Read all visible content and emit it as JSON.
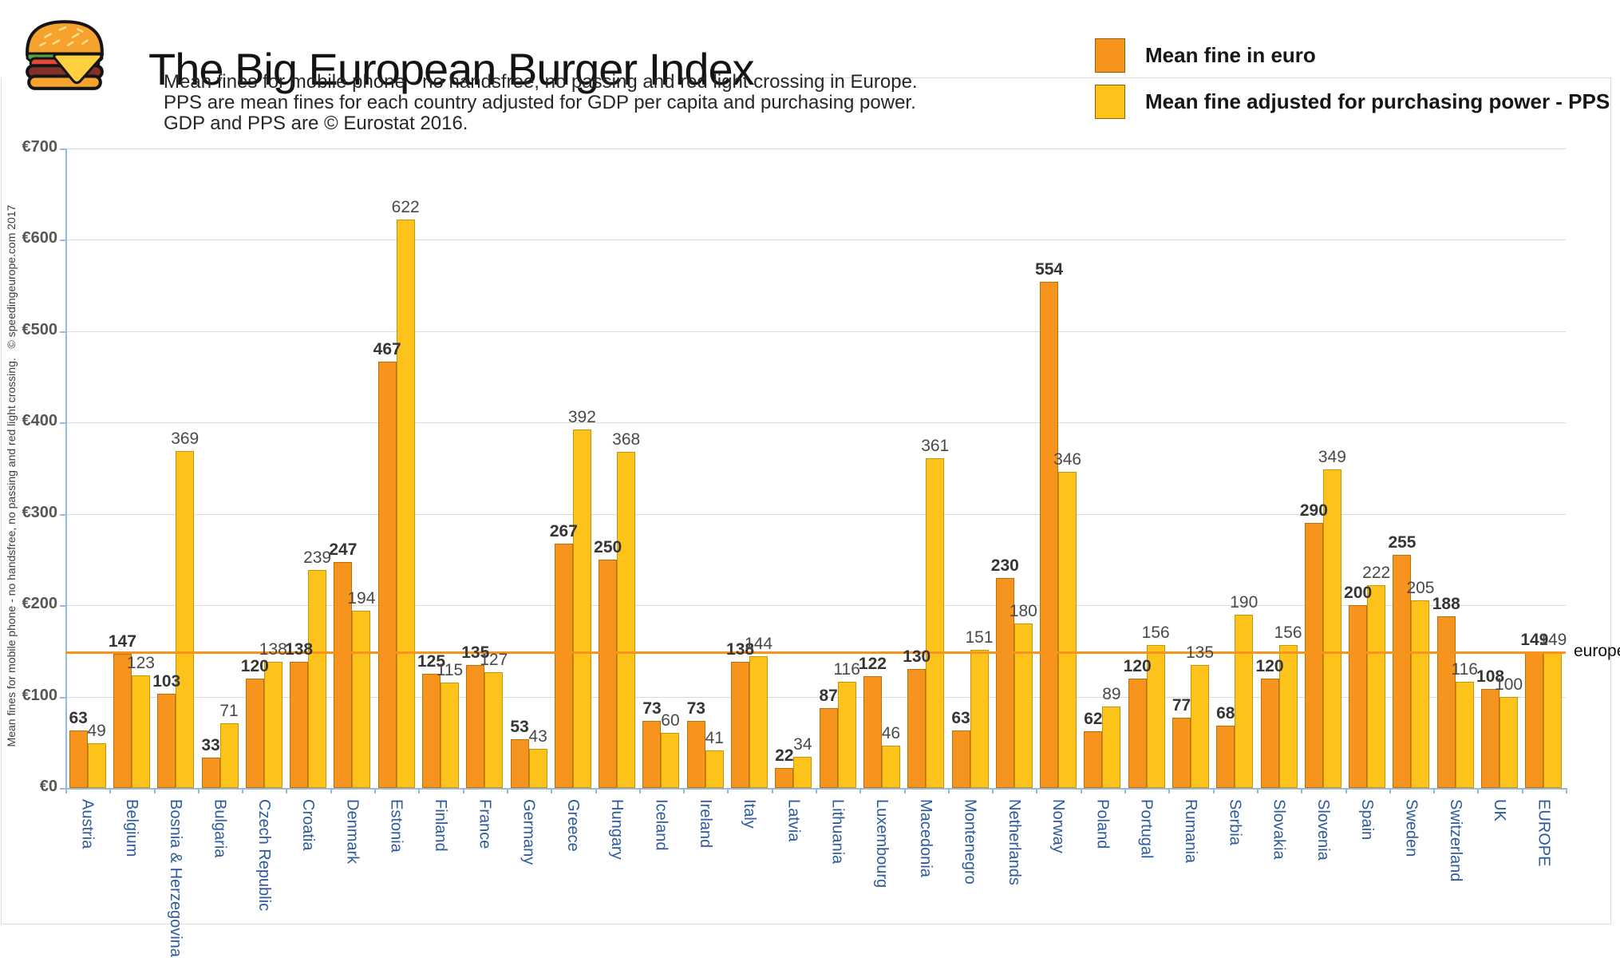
{
  "header": {
    "title": "The Big European Burger Index",
    "subtitle_lines": [
      "Mean fines for mobile phone - no handsfree, no passing and red light crossing in Europe.",
      "PPS are mean fines for each country adjusted for GDP per capita and purchasing power.",
      "GDP and PPS are © Eurostat 2016."
    ]
  },
  "legend": [
    {
      "label": "Mean fine in euro",
      "color": "#F7941E"
    },
    {
      "label": "Mean fine adjusted for purchasing power - PPS",
      "color": "#FDC31A"
    }
  ],
  "side_caption": "Mean fines for mobile phone - no handsfree, no passing and red light crossing.   © speedingeurope.com 2017",
  "chart_data": {
    "type": "bar",
    "title": "The Big European Burger Index",
    "xlabel": "",
    "ylabel": "",
    "ylim": [
      0,
      700
    ],
    "y_tick_step": 100,
    "y_tick_labels": [
      "€0",
      "€100",
      "€200",
      "€300",
      "€400",
      "€500",
      "€600",
      "€700"
    ],
    "grid": true,
    "legend_position": "top-right",
    "categories": [
      "Austria",
      "Belgium",
      "Bosnia & Herzegovina",
      "Bulgaria",
      "Czech Republic",
      "Croatia",
      "Denmark",
      "Estonia",
      "Finland",
      "France",
      "Germany",
      "Greece",
      "Hungary",
      "Iceland",
      "Ireland",
      "Italy",
      "Latvia",
      "Lithuania",
      "Luxembourg",
      "Macedonia",
      "Montenegro",
      "Netherlands",
      "Norway",
      "Poland",
      "Portugal",
      "Rumania",
      "Serbia",
      "Slovakia",
      "Slovenia",
      "Spain",
      "Sweden",
      "Switzerland",
      "UK",
      "EUROPE"
    ],
    "series": [
      {
        "name": "Mean fine in euro",
        "color": "#F7941E",
        "values": [
          63,
          147,
          103,
          33,
          120,
          138,
          247,
          467,
          125,
          135,
          53,
          267,
          250,
          73,
          73,
          138,
          22,
          87,
          122,
          130,
          63,
          230,
          554,
          62,
          120,
          77,
          68,
          120,
          290,
          200,
          255,
          188,
          108,
          149
        ]
      },
      {
        "name": "Mean fine adjusted for purchasing power - PPS",
        "color": "#FDC31A",
        "values": [
          49,
          123,
          369,
          71,
          138,
          239,
          194,
          622,
          115,
          127,
          43,
          392,
          368,
          60,
          41,
          144,
          34,
          116,
          46,
          361,
          151,
          180,
          346,
          89,
          156,
          135,
          190,
          156,
          349,
          222,
          205,
          116,
          100,
          149
        ]
      }
    ],
    "reference_line": {
      "value": 149,
      "label": "europe",
      "color": "#F7941E"
    }
  },
  "colors": {
    "axis": "#93BAE0",
    "gridline": "#DBDBDB",
    "country_label": "#2D5B9B",
    "frame": "#DCDCDC"
  }
}
